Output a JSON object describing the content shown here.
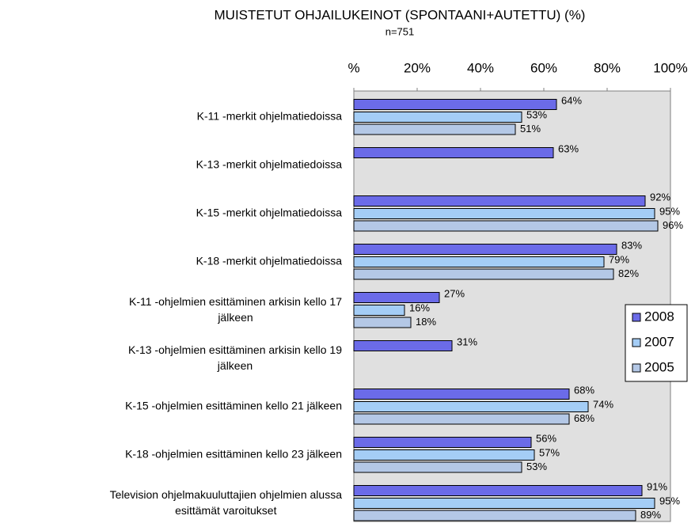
{
  "chart_data": {
    "type": "bar",
    "orientation": "horizontal",
    "title": "MUISTETUT OHJAILUKEINOT (SPONTAANI+AUTETTU) (%)",
    "subtitle": "n=751",
    "categories": [
      "K-11 -merkit ohjelmatiedoissa",
      "K-13 -merkit ohjelmatiedoissa",
      "K-15 -merkit ohjelmatiedoissa",
      "K-18 -merkit ohjelmatiedoissa",
      "K-11 -ohjelmien esittäminen arkisin kello 17\njälkeen",
      "K-13 -ohjelmien esittäminen arkisin kello 19\njälkeen",
      "K-15 -ohjelmien esittäminen kello 21 jälkeen",
      "K-18 -ohjelmien esittäminen kello 23 jälkeen",
      "Television ohjelmakuuluttajien ohjelmien alussa\nesittämät varoitukset"
    ],
    "series": [
      {
        "name": "2008",
        "color": "#6b6be8",
        "values": [
          64,
          63,
          92,
          83,
          27,
          31,
          68,
          56,
          91
        ],
        "value_labels": [
          "64%",
          "63%",
          "92%",
          "83%",
          "27%",
          "31%",
          "68%",
          "56%",
          "91%"
        ]
      },
      {
        "name": "2007",
        "color": "#a4cdf6",
        "values": [
          53,
          null,
          95,
          79,
          16,
          null,
          74,
          57,
          95
        ],
        "value_labels": [
          "53%",
          null,
          "95%",
          "79%",
          "16%",
          null,
          "74%",
          "57%",
          "95%"
        ]
      },
      {
        "name": "2005",
        "color": "#b4c8e6",
        "values": [
          51,
          null,
          96,
          82,
          18,
          null,
          68,
          53,
          89
        ],
        "value_labels": [
          "51%",
          null,
          "96%",
          "82%",
          "18%",
          null,
          "68%",
          "53%",
          "89%"
        ]
      }
    ],
    "xlim": [
      0,
      100
    ],
    "xticks": [
      {
        "value": 0,
        "label": "%"
      },
      {
        "value": 20,
        "label": "20%"
      },
      {
        "value": 40,
        "label": "40%"
      },
      {
        "value": 60,
        "label": "60%"
      },
      {
        "value": 80,
        "label": "80%"
      },
      {
        "value": 100,
        "label": "100%"
      }
    ],
    "legend": "right"
  }
}
